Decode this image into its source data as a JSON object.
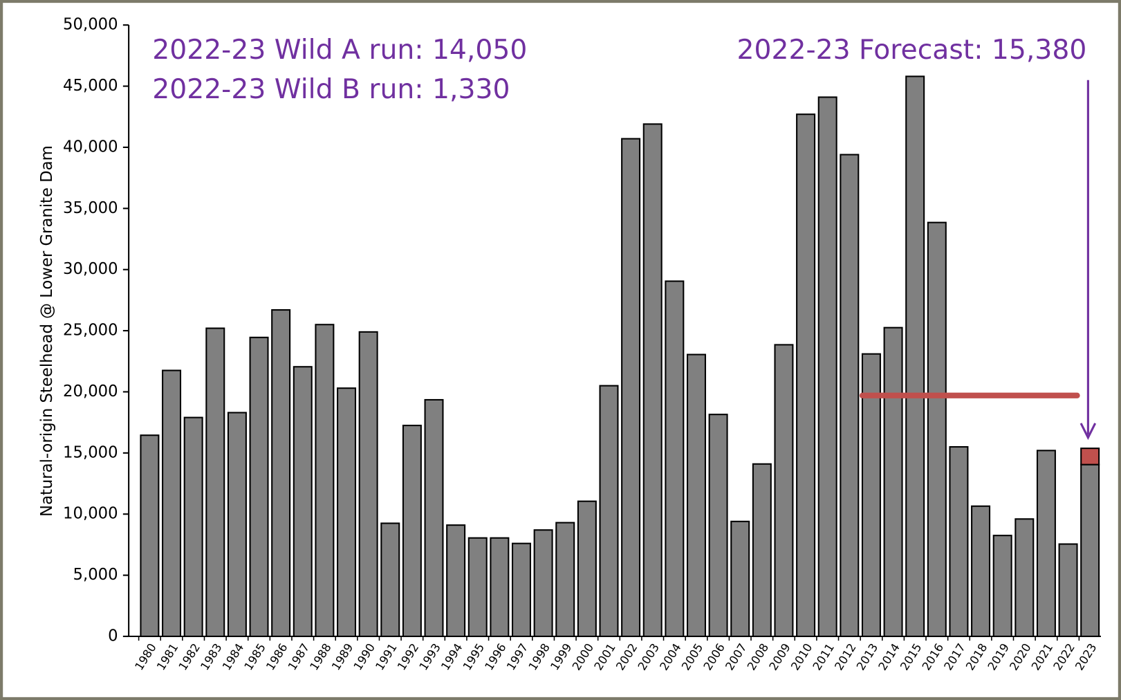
{
  "chart_data": {
    "type": "stacked_bar",
    "y_label": "Natural-origin Steelhead @ Lower Granite Dam",
    "annotations": [
      "2022-23  Wild A run: 14,050",
      "2022-23 Wild B run: 1,330",
      "2022-23 Forecast: 15,380"
    ],
    "categories": [
      "1980",
      "1981",
      "1982",
      "1983",
      "1984",
      "1985",
      "1986",
      "1987",
      "1988",
      "1989",
      "1990",
      "1991",
      "1992",
      "1993",
      "1994",
      "1995",
      "1996",
      "1997",
      "1998",
      "1999",
      "2000",
      "2001",
      "2002",
      "2003",
      "2004",
      "2005",
      "2006",
      "2007",
      "2008",
      "2009",
      "2010",
      "2011",
      "2012",
      "2013",
      "2014",
      "2015",
      "2016",
      "2017",
      "2018",
      "2019",
      "2020",
      "2021",
      "2022",
      "2023"
    ],
    "series": [
      {
        "color": "#808080",
        "values": [
          16450,
          21750,
          17900,
          25200,
          18300,
          24450,
          26700,
          22050,
          25500,
          20300,
          24900,
          9250,
          17250,
          19350,
          9100,
          8050,
          8050,
          7600,
          8700,
          9300,
          11050,
          20500,
          40700,
          41900,
          29050,
          23050,
          18150,
          9400,
          14100,
          23850,
          42700,
          44100,
          39400,
          23100,
          25250,
          45800,
          33850,
          15500,
          10650,
          8250,
          9600,
          15200,
          7550,
          14050
        ]
      },
      {
        "color": "#c0504d",
        "values": [
          null,
          null,
          null,
          null,
          null,
          null,
          null,
          null,
          null,
          null,
          null,
          null,
          null,
          null,
          null,
          null,
          null,
          null,
          null,
          null,
          null,
          null,
          null,
          null,
          null,
          null,
          null,
          null,
          null,
          null,
          null,
          null,
          null,
          null,
          null,
          null,
          null,
          null,
          null,
          null,
          null,
          null,
          null,
          1330
        ]
      }
    ],
    "reference_line": {
      "value": 19700,
      "x_range": [
        "2013",
        "2022"
      ],
      "color": "#c0504d"
    },
    "ylim": [
      0,
      50000
    ],
    "yticks": [
      0,
      {
        "value": 5000,
        "label": "5,000"
      },
      {
        "value": 10000,
        "label": "10,000"
      },
      {
        "value": 15000,
        "label": "15,000"
      },
      {
        "value": 20000,
        "label": "20,000"
      },
      {
        "value": 25000,
        "label": "25,000"
      },
      {
        "value": 30000,
        "label": "30,000"
      },
      {
        "value": 35000,
        "label": "35,000"
      },
      {
        "value": 40000,
        "label": "40,000"
      },
      {
        "value": 45000,
        "label": "45,000"
      },
      {
        "value": 50000,
        "label": "50,000"
      }
    ]
  }
}
